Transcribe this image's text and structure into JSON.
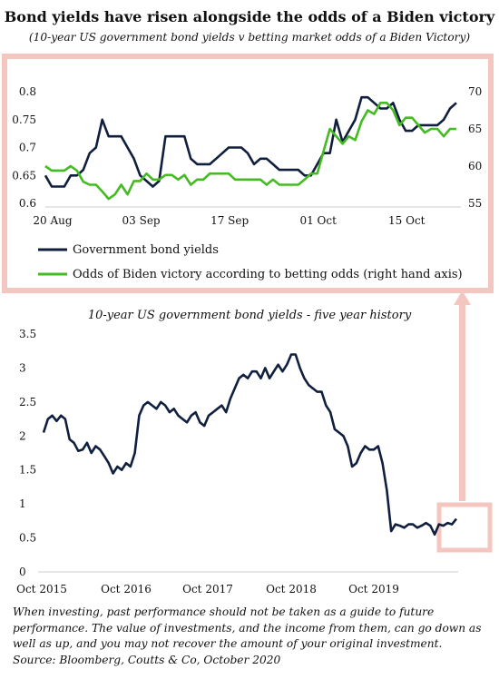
{
  "title": "Bond yields have risen alongside the odds of a Biden victory",
  "subtitle": "(10-year US government bond yields v betting market odds of a Biden Victory)",
  "footer": {
    "disclaimer": "When investing, past performance should not be taken as a guide to future performance. The value of investments, and the income from them, can go down as well as up, and you may not recover the amount of your original investment.",
    "source": "Source: Bloomberg, Coutts & Co, October 2020"
  },
  "colors": {
    "bond": "#0f1f3d",
    "odds": "#44bb22",
    "highlight": "#f4c6c0"
  },
  "chart_data": [
    {
      "type": "line",
      "title": "",
      "x_ticks": [
        "20 Aug",
        "03 Sep",
        "17 Sep",
        "01 Oct",
        "15 Oct"
      ],
      "ylim_left": [
        0.6,
        0.8
      ],
      "y_ticks_left": [
        "0.6",
        "0.65",
        "0.7",
        "0.75",
        "0.8"
      ],
      "ylim_right": [
        55,
        70
      ],
      "y_ticks_right": [
        "55",
        "60",
        "65",
        "70"
      ],
      "legend_placement": "bottom",
      "series": [
        {
          "name": "Government bond yields",
          "axis": "left",
          "values": [
            0.65,
            0.63,
            0.63,
            0.63,
            0.65,
            0.65,
            0.66,
            0.69,
            0.7,
            0.75,
            0.72,
            0.72,
            0.72,
            0.7,
            0.68,
            0.65,
            0.64,
            0.63,
            0.64,
            0.72,
            0.72,
            0.72,
            0.72,
            0.68,
            0.67,
            0.67,
            0.67,
            0.68,
            0.69,
            0.7,
            0.7,
            0.7,
            0.69,
            0.67,
            0.68,
            0.68,
            0.67,
            0.66,
            0.66,
            0.66,
            0.66,
            0.65,
            0.65,
            0.67,
            0.69,
            0.69,
            0.75,
            0.71,
            0.73,
            0.75,
            0.79,
            0.79,
            0.78,
            0.77,
            0.77,
            0.78,
            0.75,
            0.73,
            0.73,
            0.74,
            0.74,
            0.74,
            0.74,
            0.75,
            0.77,
            0.78
          ]
        },
        {
          "name": "Odds of Biden victory according to betting odds (right hand axis)",
          "axis": "right",
          "values": [
            60.0,
            59.4,
            59.4,
            59.4,
            60.0,
            59.4,
            57.9,
            57.5,
            57.5,
            56.6,
            55.6,
            56.2,
            57.5,
            56.2,
            58.0,
            58.0,
            59.0,
            58.2,
            58.2,
            58.8,
            58.8,
            58.2,
            58.8,
            57.5,
            58.2,
            58.2,
            59.0,
            59.0,
            59.0,
            59.0,
            58.2,
            58.2,
            58.2,
            58.2,
            58.2,
            57.5,
            58.2,
            57.5,
            57.5,
            57.5,
            57.5,
            58.2,
            59.0,
            59.0,
            62.0,
            65.0,
            64.0,
            63.0,
            64.0,
            63.5,
            66.0,
            67.5,
            67.0,
            68.5,
            68.5,
            67.5,
            65.5,
            66.5,
            66.5,
            65.5,
            64.5,
            65.0,
            65.0,
            64.0,
            65.0,
            65.0
          ]
        }
      ]
    },
    {
      "type": "line",
      "title": "10-year US government bond yields - five year history",
      "x_ticks": [
        "Oct 2015",
        "Oct 2016",
        "Oct 2017",
        "Oct 2018",
        "Oct 2019"
      ],
      "ylim": [
        0,
        3.5
      ],
      "y_ticks": [
        "0",
        "0.5",
        "1",
        "1.5",
        "2",
        "2.5",
        "3",
        "3.5"
      ],
      "series": [
        {
          "name": "",
          "values": [
            2.05,
            2.25,
            2.3,
            2.22,
            2.3,
            2.25,
            1.95,
            1.9,
            1.78,
            1.8,
            1.9,
            1.75,
            1.85,
            1.8,
            1.7,
            1.6,
            1.45,
            1.55,
            1.5,
            1.6,
            1.55,
            1.75,
            2.3,
            2.45,
            2.5,
            2.45,
            2.4,
            2.5,
            2.45,
            2.35,
            2.4,
            2.3,
            2.25,
            2.2,
            2.3,
            2.35,
            2.2,
            2.15,
            2.3,
            2.35,
            2.4,
            2.45,
            2.35,
            2.55,
            2.7,
            2.85,
            2.9,
            2.85,
            2.95,
            2.95,
            2.85,
            3.0,
            2.85,
            2.95,
            3.05,
            2.95,
            3.05,
            3.2,
            3.2,
            3.0,
            2.85,
            2.75,
            2.7,
            2.65,
            2.65,
            2.45,
            2.35,
            2.1,
            2.05,
            2.0,
            1.85,
            1.55,
            1.6,
            1.75,
            1.85,
            1.8,
            1.8,
            1.85,
            1.6,
            1.2,
            0.6,
            0.7,
            0.68,
            0.65,
            0.7,
            0.7,
            0.65,
            0.68,
            0.72,
            0.68,
            0.55,
            0.7,
            0.68,
            0.72,
            0.7,
            0.78
          ]
        }
      ]
    }
  ]
}
